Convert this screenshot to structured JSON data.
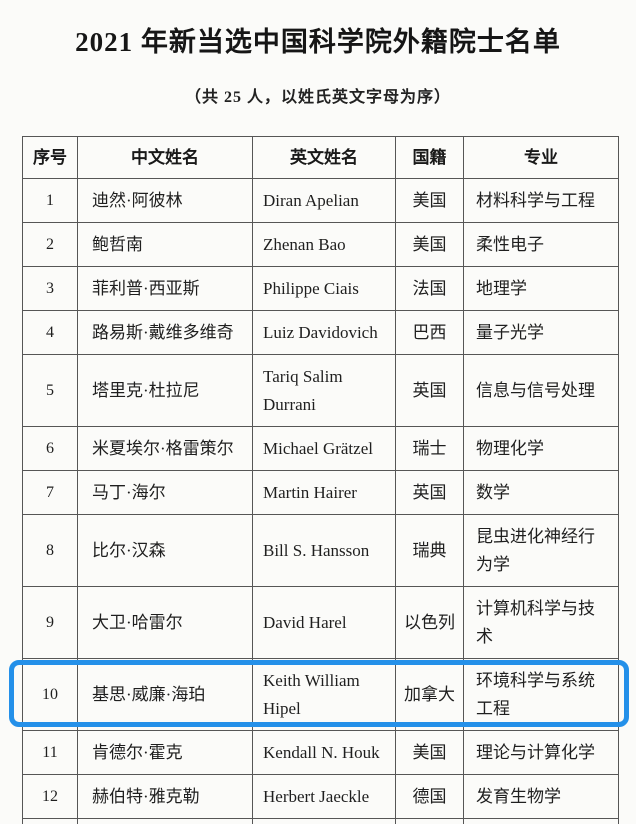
{
  "document": {
    "title": "2021 年新当选中国科学院外籍院士名单",
    "subtitle": "（共 25 人，以姓氏英文字母为序）"
  },
  "table": {
    "headers": {
      "no": "序号",
      "cn": "中文姓名",
      "en": "英文姓名",
      "nationality": "国籍",
      "major": "专业"
    },
    "highlight_row_index": 9,
    "highlight_color": "#2490e9",
    "rows": [
      {
        "no": "1",
        "cn": "迪然·阿彼林",
        "en": "Diran Apelian",
        "nat": "美国",
        "major": "材料科学与工程"
      },
      {
        "no": "2",
        "cn": "鲍哲南",
        "en": "Zhenan Bao",
        "nat": "美国",
        "major": "柔性电子"
      },
      {
        "no": "3",
        "cn": "菲利普·西亚斯",
        "en": "Philippe Ciais",
        "nat": "法国",
        "major": "地理学"
      },
      {
        "no": "4",
        "cn": "路易斯·戴维多维奇",
        "en": "Luiz Davidovich",
        "nat": "巴西",
        "major": "量子光学"
      },
      {
        "no": "5",
        "cn": "塔里克·杜拉尼",
        "en": "Tariq Salim Durrani",
        "nat": "英国",
        "major": "信息与信号处理"
      },
      {
        "no": "6",
        "cn": "米夏埃尔·格雷策尔",
        "en": "Michael Grätzel",
        "nat": "瑞士",
        "major": "物理化学"
      },
      {
        "no": "7",
        "cn": "马丁·海尔",
        "en": "Martin Hairer",
        "nat": "英国",
        "major": "数学"
      },
      {
        "no": "8",
        "cn": "比尔·汉森",
        "en": "Bill S. Hansson",
        "nat": "瑞典",
        "major": "昆虫进化神经行为学"
      },
      {
        "no": "9",
        "cn": "大卫·哈雷尔",
        "en": "David Harel",
        "nat": "以色列",
        "major": "计算机科学与技术"
      },
      {
        "no": "10",
        "cn": "基思·威廉·海珀",
        "en": "Keith William Hipel",
        "nat": "加拿大",
        "major": "环境科学与系统工程"
      },
      {
        "no": "11",
        "cn": "肯德尔·霍克",
        "en": "Kendall N. Houk",
        "nat": "美国",
        "major": "理论与计算化学"
      },
      {
        "no": "12",
        "cn": "赫伯特·雅克勒",
        "en": "Herbert Jaeckle",
        "nat": "德国",
        "major": "发育生物学"
      }
    ]
  }
}
